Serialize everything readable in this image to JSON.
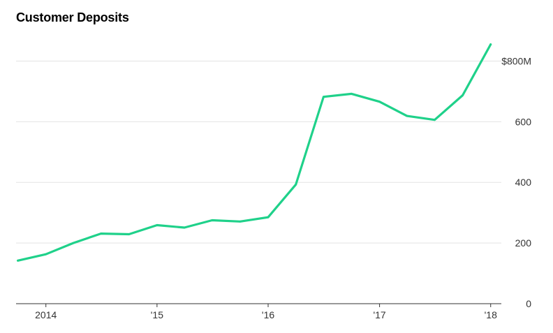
{
  "chart_data": {
    "type": "line",
    "title": "Customer Deposits",
    "xlabel": "",
    "ylabel": "",
    "x": [
      "2013-10-01",
      "2014-01-01",
      "2014-04-01",
      "2014-07-01",
      "2014-10-01",
      "2015-01-01",
      "2015-04-01",
      "2015-07-01",
      "2015-10-01",
      "2016-01-01",
      "2016-04-01",
      "2016-07-01",
      "2016-10-01",
      "2017-01-01",
      "2017-04-01",
      "2017-07-01",
      "2017-10-01",
      "2018-01-01"
    ],
    "series": [
      {
        "values": [
          142,
          163,
          200,
          231,
          229,
          259,
          251,
          275,
          271,
          285,
          393,
          682,
          692,
          666,
          619,
          606,
          687,
          855
        ]
      }
    ],
    "xlim": [
      "2013-09-25",
      "2018-02-05"
    ],
    "ylim": [
      0,
      900
    ],
    "y_ticks": [
      {
        "value": 800,
        "label": "$800M"
      },
      {
        "value": 600,
        "label": "600"
      },
      {
        "value": 400,
        "label": "400"
      },
      {
        "value": 200,
        "label": "200"
      },
      {
        "value": 0,
        "label": "0"
      }
    ],
    "x_ticks": [
      {
        "value": "2014-01-01",
        "label": "2014"
      },
      {
        "value": "2015-01-01",
        "label": "'15"
      },
      {
        "value": "2016-01-01",
        "label": "'16"
      },
      {
        "value": "2017-01-01",
        "label": "'17"
      },
      {
        "value": "2018-01-01",
        "label": "'18"
      }
    ],
    "grid": true,
    "line_color": "#1fd18a"
  }
}
